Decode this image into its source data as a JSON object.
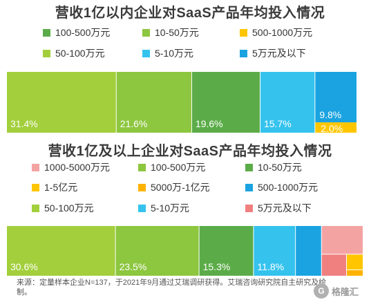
{
  "chart_data": [
    {
      "type": "bar",
      "stacked": "100%",
      "title": "营收1亿以内企业对SaaS产品年均投入情况",
      "legend": [
        "100-500万元",
        "10-50万元",
        "500-1000万元",
        "50-100万元",
        "5-10万元",
        "5万元及以下"
      ],
      "series": [
        {
          "name": "50-100万元",
          "value": 31.4,
          "label": "31.4%",
          "color": "#a3cf3c"
        },
        {
          "name": "10-50万元",
          "value": 21.6,
          "label": "21.6%",
          "color": "#8dc63f"
        },
        {
          "name": "100-500万元",
          "value": 19.6,
          "label": "19.6%",
          "color": "#5bac48"
        },
        {
          "name": "5-10万元",
          "value": 15.7,
          "label": "15.7%",
          "color": "#35c3ee"
        },
        {
          "name": "5万元及以下",
          "value": 9.8,
          "label": "9.8%",
          "color": "#1aa3e0"
        },
        {
          "name": "500-1000万元",
          "value": 2.0,
          "label": "2.0%",
          "color": "#ffc600"
        }
      ]
    },
    {
      "type": "bar",
      "stacked": "100%",
      "title": "营收1亿及以上企业对SaaS产品年均投入情况",
      "legend": [
        "1000-5000万元",
        "100-500万元",
        "10-50万元",
        "1-5亿元",
        "5000万-1亿元",
        "500-1000万元",
        "50-100万元",
        "5-10万元",
        "5万元及以下"
      ],
      "series": [
        {
          "name": "50-100万元",
          "value": 30.6,
          "label": "30.6%",
          "color": "#a3cf3c"
        },
        {
          "name": "100-500万元",
          "value": 23.5,
          "label": "23.5%",
          "color": "#8dc63f"
        },
        {
          "name": "10-50万元",
          "value": 15.3,
          "label": "15.3%",
          "color": "#5bac48"
        },
        {
          "name": "5-10万元",
          "value": 11.8,
          "label": "11.8%",
          "color": "#35c3ee"
        },
        {
          "name": "500-1000万元",
          "value": 7.3,
          "label": "",
          "color": "#1aa3e0"
        },
        {
          "name": "1000-5000万元",
          "value": 6.6,
          "label": "",
          "color": "#f4a3a3"
        },
        {
          "name": "5万元及以下",
          "value": 3.0,
          "label": "",
          "color": "#f08080"
        },
        {
          "name": "1-5亿元",
          "value": 1.4,
          "label": "",
          "color": "#ffc600"
        },
        {
          "name": "5000万-1亿元",
          "value": 0.5,
          "label": "",
          "color": "#ffb300"
        }
      ]
    }
  ],
  "colors": {
    "100-500万元": "#5bac48",
    "10-50万元": "#8dc63f",
    "500-1000万元": "#ffc600",
    "50-100万元": "#a3cf3c",
    "5-10万元": "#35c3ee",
    "5万元及以下": "#1aa3e0",
    "1000-5000万元": "#f4a3a3",
    "1-5亿元": "#ffc600",
    "5000万-1亿元": "#ffb300",
    "500-1000万元_b": "#1aa3e0",
    "5万元及以下_b": "#f08080",
    "100-500万元_b": "#8dc63f",
    "10-50万元_b": "#5bac48"
  },
  "footnote": "来源：定量样本企业N=137，于2021年9月通过艾瑞调研获得。艾瑞咨询研究院自主研究及绘制。",
  "watermark": "格隆汇",
  "watermark_logo": "G"
}
